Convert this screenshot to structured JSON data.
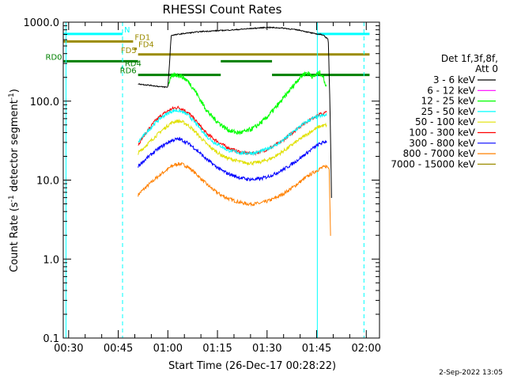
{
  "chart_data": {
    "type": "line",
    "title": "RHESSI Count Rates",
    "xlabel": "Start Time (26-Dec-17 00:28:22)",
    "ylabel": "Count Rate (s⁻¹ detector segment⁻¹)",
    "ylabel_main": "Count Rate (s",
    "ylabel_sup1": "-1",
    "ylabel_mid": " detector segment",
    "ylabel_sup2": "-1",
    "ylabel_end": ")",
    "yscale": "log",
    "xlim": [
      28.37,
      124
    ],
    "ylim": [
      0.1,
      1000
    ],
    "x_unit": "minutes after 00:00 UT",
    "x_ticks": [
      {
        "value": 30,
        "label": "00:30"
      },
      {
        "value": 45,
        "label": "00:45"
      },
      {
        "value": 60,
        "label": "01:00"
      },
      {
        "value": 75,
        "label": "01:15"
      },
      {
        "value": 90,
        "label": "01:30"
      },
      {
        "value": 105,
        "label": "01:45"
      },
      {
        "value": 120,
        "label": "02:00"
      }
    ],
    "y_ticks": [
      {
        "value": 0.1,
        "label": "0.1"
      },
      {
        "value": 1,
        "label": "1.0"
      },
      {
        "value": 10,
        "label": "10.0"
      },
      {
        "value": 100,
        "label": "100.0"
      },
      {
        "value": 1000,
        "label": "1000.0"
      }
    ],
    "legend_header": [
      "Det 1f,3f,8f,",
      "Att 0"
    ],
    "series": [
      {
        "name": "3 - 6 keV",
        "color": "#000000",
        "x": [
          51,
          55,
          58,
          60,
          60.5,
          61,
          65,
          70,
          75,
          80,
          85,
          90,
          95,
          100,
          104,
          107,
          108.5,
          109,
          109.5
        ],
        "y": [
          165,
          158,
          152,
          150,
          300,
          680,
          720,
          760,
          780,
          800,
          830,
          860,
          840,
          790,
          720,
          690,
          600,
          100,
          6
        ]
      },
      {
        "name": "6 - 12 keV",
        "color": "#ff00ff",
        "x": [],
        "y": []
      },
      {
        "name": "12 - 25 keV",
        "color": "#00ff00",
        "x": [
          60,
          61,
          62,
          63,
          64,
          65,
          66,
          67,
          68,
          69,
          70,
          71,
          72,
          73,
          74,
          75,
          76,
          77,
          78,
          79,
          80,
          81,
          82,
          83,
          84,
          85,
          86,
          87,
          88,
          89,
          90,
          91,
          92,
          93,
          94,
          95,
          96,
          97,
          98,
          99,
          100,
          101,
          102,
          103,
          104,
          105,
          106,
          107,
          108
        ],
        "y": [
          160,
          200,
          215,
          215,
          208,
          195,
          180,
          160,
          140,
          120,
          100,
          86,
          74,
          66,
          60,
          55,
          51,
          47,
          44,
          42,
          41,
          40,
          40,
          41,
          42,
          44,
          46,
          49,
          53,
          57,
          63,
          70,
          78,
          87,
          97,
          110,
          124,
          140,
          158,
          180,
          200,
          220,
          230,
          220,
          200,
          220,
          230,
          200,
          150
        ]
      },
      {
        "name": "25 - 50 keV",
        "color": "#00ffff",
        "x": [
          51,
          52,
          54,
          56,
          58,
          60,
          61,
          62,
          63,
          64,
          65,
          66,
          67,
          68,
          69,
          70,
          71,
          72,
          74,
          76,
          78,
          80,
          82,
          84,
          86,
          88,
          90,
          92,
          94,
          96,
          98,
          100,
          102,
          104,
          106,
          108
        ],
        "y": [
          30,
          34,
          42,
          52,
          62,
          70,
          74,
          76,
          76,
          74,
          71,
          67,
          61,
          55,
          49,
          44,
          39,
          35,
          30,
          27,
          24,
          23,
          22,
          22,
          22,
          23,
          25,
          27,
          30,
          35,
          41,
          48,
          55,
          61,
          65,
          66
        ]
      },
      {
        "name": "50 - 100 keV",
        "color": "#e0e000",
        "x": [
          51,
          52,
          54,
          56,
          58,
          60,
          61,
          62,
          63,
          64,
          65,
          66,
          67,
          68,
          69,
          70,
          71,
          72,
          74,
          76,
          78,
          80,
          82,
          84,
          86,
          88,
          90,
          92,
          94,
          96,
          98,
          100,
          102,
          104,
          106,
          108
        ],
        "y": [
          22,
          24,
          29,
          35,
          42,
          49,
          53,
          55,
          56,
          55,
          53,
          50,
          46,
          42,
          38,
          34,
          31,
          28,
          24,
          21,
          19,
          18,
          17,
          16.5,
          16.5,
          17,
          18,
          19.5,
          22,
          25,
          29,
          33,
          38,
          43,
          48,
          50
        ]
      },
      {
        "name": "100 - 300 keV",
        "color": "#ff0000",
        "x": [
          51,
          52,
          54,
          56,
          58,
          60,
          61,
          62,
          63,
          64,
          65,
          66,
          67,
          68,
          69,
          70,
          71,
          72,
          74,
          76,
          78,
          80,
          82,
          84,
          86,
          88,
          90,
          92,
          94,
          96,
          98,
          100,
          102,
          104,
          106,
          108
        ],
        "y": [
          28,
          33,
          43,
          55,
          66,
          75,
          79,
          82,
          83,
          81,
          77,
          72,
          66,
          59,
          53,
          47,
          42,
          38,
          33,
          29,
          26,
          24,
          22.5,
          22,
          22,
          23,
          24.5,
          27,
          30,
          35,
          41,
          48,
          55,
          62,
          68,
          72
        ]
      },
      {
        "name": "300 - 800 keV",
        "color": "#0000ff",
        "x": [
          51,
          52,
          54,
          56,
          58,
          60,
          61,
          62,
          63,
          64,
          65,
          66,
          67,
          68,
          69,
          70,
          71,
          72,
          74,
          76,
          78,
          80,
          82,
          84,
          86,
          88,
          90,
          92,
          94,
          96,
          98,
          100,
          102,
          104,
          106,
          108
        ],
        "y": [
          15,
          16.5,
          19.5,
          23,
          26.5,
          30,
          31.5,
          32.5,
          33,
          32.5,
          31,
          29.5,
          27.5,
          25.5,
          23.5,
          21.5,
          19.5,
          18,
          15.5,
          13.5,
          12.2,
          11.3,
          10.7,
          10.3,
          10.2,
          10.4,
          11,
          11.8,
          13,
          14.5,
          16.5,
          19,
          22,
          25.5,
          29,
          31
        ]
      },
      {
        "name": "800 - 7000 keV",
        "color": "#ff8000",
        "x": [
          51,
          52,
          54,
          56,
          58,
          60,
          61,
          62,
          63,
          64,
          65,
          66,
          67,
          68,
          69,
          70,
          71,
          72,
          74,
          76,
          78,
          80,
          82,
          84,
          86,
          88,
          90,
          92,
          94,
          96,
          98,
          100,
          102,
          104,
          106,
          108,
          108.8,
          109.2
        ],
        "y": [
          6.5,
          7.2,
          8.6,
          10.2,
          12,
          13.8,
          14.8,
          15.6,
          16,
          16,
          15.5,
          14.7,
          13.7,
          12.6,
          11.5,
          10.4,
          9.5,
          8.7,
          7.4,
          6.5,
          5.9,
          5.5,
          5.2,
          5,
          5,
          5.1,
          5.4,
          5.8,
          6.4,
          7.2,
          8.2,
          9.5,
          11,
          12.5,
          14,
          15,
          14,
          2
        ]
      },
      {
        "name": "7000 - 15000 keV",
        "color": "#9b8b00",
        "x": [],
        "y": []
      }
    ],
    "flags": [
      {
        "name": "N",
        "color": "#00ffff",
        "y_value": 710,
        "label_position": "right-end",
        "segments": [
          [
            28.5,
            46.3
          ],
          [
            105.2,
            121
          ]
        ]
      },
      {
        "name": "FD1",
        "color": "#9b8b00",
        "y_value": 570,
        "label_position": "right-end",
        "segments": [
          [
            28.5,
            49.5
          ]
        ]
      },
      {
        "name": "FD4",
        "color": "#9b8b00",
        "y_value": 460,
        "label_position": "right-end",
        "segments": [
          [
            49.8,
            50.6
          ]
        ]
      },
      {
        "name": "FD5",
        "color": "#9b8b00",
        "y_value": 390,
        "label_position": "left-start",
        "segments": [
          [
            51,
            121
          ]
        ]
      },
      {
        "name": "RD0",
        "color": "#008000",
        "y_value": 320,
        "label_position": "left-start",
        "segments": [
          [
            28.5,
            51
          ],
          [
            76,
            91.5
          ]
        ]
      },
      {
        "name": "RD4",
        "color": "#008000",
        "y_value": 265,
        "label_position": "right-end",
        "segments": [
          [
            46,
            46.5
          ]
        ]
      },
      {
        "name": "RD6",
        "color": "#008000",
        "y_value": 215,
        "label_position": "left-start",
        "segments": [
          [
            51,
            76
          ],
          [
            91.5,
            121
          ]
        ]
      }
    ],
    "vlines": [
      {
        "x": 29.2,
        "color": "#00ffff",
        "style": "solid"
      },
      {
        "x": 46.3,
        "color": "#00ffff",
        "style": "dashed"
      },
      {
        "x": 105.2,
        "color": "#00ffff",
        "style": "solid"
      },
      {
        "x": 119.3,
        "color": "#00ffff",
        "style": "dashed"
      }
    ],
    "legend_placement": "right"
  },
  "timestamp": "2-Sep-2022 13:05"
}
